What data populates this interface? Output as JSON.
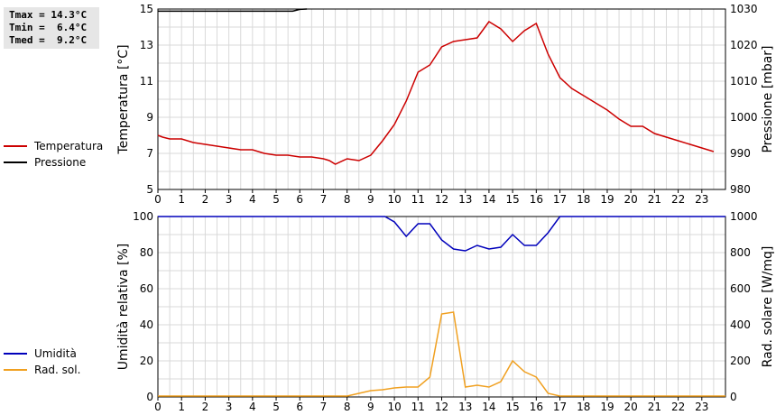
{
  "stats": {
    "tmax": "Tmax = 14.3°C",
    "tmin": "Tmin =  6.4°C",
    "tmed": "Tmed =  9.2°C"
  },
  "legend_top": [
    {
      "label": "Temperatura",
      "color": "#cc0000"
    },
    {
      "label": "Pressione",
      "color": "#000000"
    }
  ],
  "legend_bottom": [
    {
      "label": "Umidità",
      "color": "#0000bb"
    },
    {
      "label": "Rad. sol.",
      "color": "#f0a020"
    }
  ],
  "chart_data": [
    {
      "type": "line",
      "xlabel": "",
      "xticks": [
        "0",
        "1",
        "2",
        "3",
        "4",
        "5",
        "6",
        "7",
        "8",
        "9",
        "10",
        "11",
        "12",
        "13",
        "14",
        "15",
        "16",
        "17",
        "18",
        "19",
        "20",
        "21",
        "22",
        "23"
      ],
      "xlim": [
        0,
        24
      ],
      "y_left": {
        "label": "Temperatura [°C]",
        "ylim": [
          5,
          15
        ],
        "ticks": [
          "5",
          "7",
          "9",
          "11",
          "13",
          "15"
        ]
      },
      "y_right": {
        "label": "Pressione [mbar]",
        "ylim": [
          980,
          1030
        ],
        "ticks": [
          "980",
          "990",
          "1000",
          "1010",
          "1020",
          "1030"
        ]
      },
      "grid": true,
      "series": [
        {
          "name": "Temperatura",
          "axis": "left",
          "color": "#cc0000",
          "x": [
            0,
            0.2,
            0.5,
            1,
            1.5,
            2,
            2.5,
            3,
            3.5,
            4,
            4.5,
            5,
            5.5,
            6,
            6.5,
            7,
            7.25,
            7.5,
            8,
            8.5,
            9,
            9.5,
            10,
            10.5,
            11,
            11.5,
            12,
            12.5,
            13,
            13.5,
            14,
            14.5,
            15,
            15.5,
            16,
            16.5,
            17,
            17.5,
            18,
            18.5,
            19,
            19.5,
            20,
            20.5,
            21,
            21.5,
            22,
            22.5,
            23,
            23.5
          ],
          "y": [
            8.0,
            7.9,
            7.8,
            7.8,
            7.6,
            7.5,
            7.4,
            7.3,
            7.2,
            7.2,
            7.0,
            6.9,
            6.9,
            6.8,
            6.8,
            6.7,
            6.6,
            6.4,
            6.7,
            6.6,
            6.9,
            7.7,
            8.6,
            9.9,
            11.5,
            11.9,
            12.9,
            13.2,
            13.3,
            13.4,
            14.3,
            13.9,
            13.2,
            13.8,
            14.2,
            12.5,
            11.2,
            10.6,
            10.2,
            9.8,
            9.4,
            8.9,
            8.5,
            8.5,
            8.1,
            7.9,
            7.7,
            7.5,
            7.3,
            7.1
          ]
        },
        {
          "name": "Pressione",
          "axis": "right",
          "color": "#000000",
          "x": [
            0,
            5.7,
            6.0,
            6.3
          ],
          "y": [
            1029.4,
            1029.4,
            1029.9,
            1030.0
          ]
        }
      ]
    },
    {
      "type": "line",
      "xlabel": "",
      "xticks": [
        "0",
        "1",
        "2",
        "3",
        "4",
        "5",
        "6",
        "7",
        "8",
        "9",
        "10",
        "11",
        "12",
        "13",
        "14",
        "15",
        "16",
        "17",
        "18",
        "19",
        "20",
        "21",
        "22",
        "23"
      ],
      "xlim": [
        0,
        24
      ],
      "y_left": {
        "label": "Umidità relativa [%]",
        "ylim": [
          0,
          100
        ],
        "ticks": [
          "0",
          "20",
          "40",
          "60",
          "80",
          "100"
        ]
      },
      "y_right": {
        "label": "Rad. solare [W/mq]",
        "ylim": [
          0,
          1000
        ],
        "ticks": [
          "0",
          "200",
          "400",
          "600",
          "800",
          "1000"
        ]
      },
      "grid": true,
      "series": [
        {
          "name": "Umidità",
          "axis": "left",
          "color": "#0000bb",
          "x": [
            0,
            9.6,
            10,
            10.5,
            11,
            11.5,
            12,
            12.5,
            13,
            13.5,
            14,
            14.5,
            15,
            15.5,
            16,
            16.5,
            17,
            24
          ],
          "y": [
            100,
            100,
            97,
            89,
            96,
            96,
            87,
            82,
            81,
            84,
            82,
            83,
            90,
            84,
            84,
            91,
            100,
            100
          ]
        },
        {
          "name": "Rad. sol.",
          "axis": "right",
          "color": "#f0a020",
          "x": [
            0,
            8,
            8.5,
            9,
            9.5,
            10,
            10.5,
            11,
            11.5,
            12,
            12.5,
            13,
            13.5,
            14,
            14.5,
            15,
            15.5,
            16,
            16.5,
            17,
            24
          ],
          "y": [
            5,
            5,
            20,
            35,
            40,
            50,
            55,
            55,
            110,
            460,
            470,
            55,
            65,
            55,
            85,
            200,
            140,
            110,
            20,
            5,
            5
          ]
        }
      ]
    }
  ]
}
